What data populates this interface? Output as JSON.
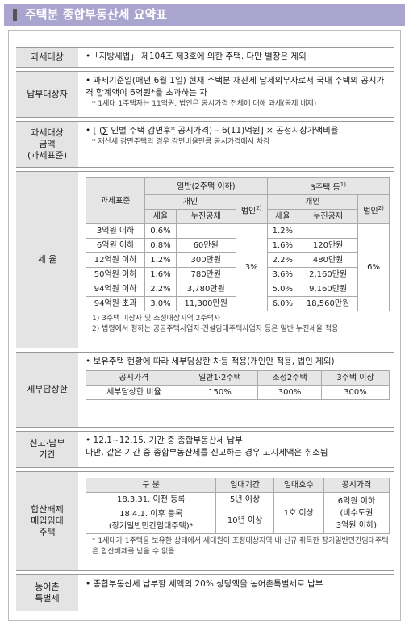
{
  "title": "주택분 종합부동산세 요약표",
  "rows": [
    {
      "label": [
        "과세대상"
      ],
      "lines": [
        "•「지방세법」 제104조 제3호에 의한 주택. 다만 별장은 제외"
      ]
    },
    {
      "label": [
        "납부대상자"
      ],
      "lines": [
        "• 과세기준일(매년 6월 1일) 현재 주택분 재산세 납세의무자로서 국내 주택의 공시가격 합계액이 6억원*을 초과하는 자"
      ],
      "notes": [
        "* 1세대 1주택자는 11억원, 법인은 공시가격 전체에 대해 과세(공제 배제)"
      ]
    },
    {
      "label": [
        "과세대상",
        "금액",
        "(과세표준)"
      ],
      "lines": [
        "• [ (∑ 인별 주택 감면후* 공시가격) – 6(11)억원] × 공정시장가액비율"
      ],
      "notes": [
        "* 재산세 감면주택의 경우 감면비율만큼 공시가격에서 차감"
      ]
    },
    {
      "label": [
        "세  율"
      ],
      "rate_table": {
        "base_header": "과세표준",
        "groups": [
          {
            "text": "일반(2주택 이하)"
          },
          {
            "text": "3주택 등",
            "sup": "1)"
          }
        ],
        "person": "개인",
        "corp": "법인",
        "corp_sup": "2)",
        "rate": "세율",
        "deduct": "누진공제",
        "rows": [
          {
            "base": "3억원 이하",
            "r1": "0.6%",
            "d1": null,
            "r3": "1.2%",
            "d3": null
          },
          {
            "base": "6억원 이하",
            "r1": "0.8%",
            "d1": "60만원",
            "r3": "1.6%",
            "d3": "120만원"
          },
          {
            "base": "12억원 이하",
            "r1": "1.2%",
            "d1": "300만원",
            "r3": "2.2%",
            "d3": "480만원"
          },
          {
            "base": "50억원 이하",
            "r1": "1.6%",
            "d1": "780만원",
            "r3": "3.6%",
            "d3": "2,160만원"
          },
          {
            "base": "94억원 이하",
            "r1": "2.2%",
            "d1": "3,780만원",
            "r3": "5.0%",
            "d3": "9,160만원"
          },
          {
            "base": "94억원 초과",
            "r1": "3.0%",
            "d1": "11,300만원",
            "r3": "6.0%",
            "d3": "18,560만원"
          }
        ],
        "corp1": "3%",
        "corp3": "6%"
      },
      "notes": [
        "1) 3주택 이상자 및 조정대상지역 2주택자",
        "2) 법령에서 정하는 공공주택사업자·건설임대주택사업자 등은 일반 누진세율 적용"
      ]
    },
    {
      "label": [
        "세부담상한"
      ],
      "lines": [
        "• 보유주택 현황에 따라 세부담상한 차등 적용(개인만 적용, 법인 제외)"
      ],
      "cap_table": {
        "header": [
          "공시가격",
          "일반1·2주택",
          "조정2주택",
          "3주택 이상"
        ],
        "row": [
          "세부담상한 비율",
          "150%",
          "300%",
          "300%"
        ]
      }
    },
    {
      "label": [
        "신고·납부",
        "기간"
      ],
      "lines": [
        "• 12.1~12.15. 기간 중 종합부동산세 납부",
        "다만, 같은 기간 중 종합부동산세를 신고하는 경우 고지세액은 취소됨"
      ]
    },
    {
      "label": [
        "합산배제",
        "매입임대",
        "주택"
      ],
      "lease_table": {
        "header": [
          "구 분",
          "임대기간",
          "임대호수",
          "공시가격"
        ],
        "rows": [
          {
            "type": [
              "18.3.31. 이전 등록"
            ],
            "period": "5년 이상"
          },
          {
            "type": [
              "18.4.1. 이후 등록",
              "(장기일반민간임대주택)*"
            ],
            "period": "10년 이상"
          }
        ],
        "units": "1호 이상",
        "price": [
          "6억원 이하",
          "(비수도권",
          "3억원 이하)"
        ]
      },
      "notes": [
        "* 1세대가 1주택을 보유한 상태에서 세대원이 조정대상지역 내 신규 취득한 장기일반민간임대주택은 합산배제를 받을 수 없음"
      ]
    },
    {
      "label": [
        "농어촌",
        "특별세"
      ],
      "lines": [
        "• 종합부동산세 납부할 세액의 20% 상당액을 농어촌특별세로 납부"
      ]
    }
  ]
}
